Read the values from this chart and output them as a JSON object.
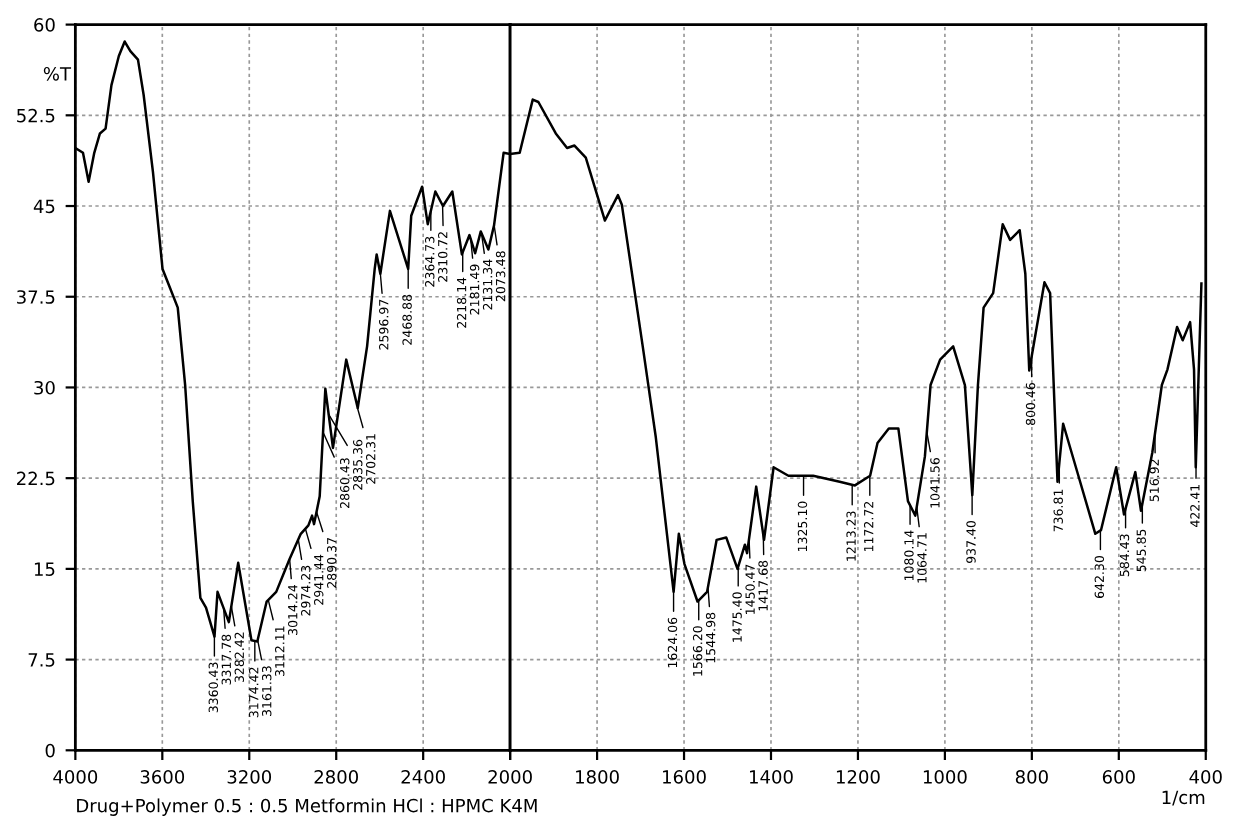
{
  "chart_data": [
    {
      "type": "line",
      "ylabel": "%T",
      "x": [
        4000,
        3965,
        3939,
        3913,
        3887,
        3861,
        3834,
        3800,
        3773,
        3747,
        3712,
        3686,
        3643,
        3599,
        3564,
        3529,
        3495,
        3460,
        3425,
        3399,
        3360,
        3346,
        3294,
        3251,
        3190,
        3163,
        3120,
        3076,
        3015,
        2963,
        2928,
        2911,
        2902,
        2876,
        2850,
        2815,
        2754,
        2701,
        2658,
        2623,
        2614,
        2597,
        2553,
        2469,
        2455,
        2405,
        2379,
        2344,
        2309,
        2266,
        2222,
        2187,
        2161,
        2135,
        2100,
        2074,
        2030,
        2000
      ],
      "series": [
        {
          "color": "#000000",
          "values": [
            49.8,
            49.4,
            47.0,
            49.4,
            51.0,
            51.4,
            55.0,
            57.4,
            58.6,
            57.8,
            57.1,
            54.2,
            47.8,
            39.8,
            38.2,
            36.6,
            30.2,
            20.6,
            12.6,
            11.8,
            9.4,
            13.1,
            10.6,
            15.5,
            9.1,
            9.0,
            12.3,
            13.1,
            15.8,
            17.9,
            18.6,
            19.4,
            18.7,
            21.0,
            29.9,
            25.0,
            32.3,
            28.3,
            33.4,
            39.8,
            41.0,
            39.4,
            44.6,
            39.8,
            44.2,
            46.6,
            43.5,
            46.2,
            45.0,
            46.2,
            41.0,
            42.6,
            41.1,
            42.9,
            41.4,
            43.4,
            49.4,
            49.3
          ]
        }
      ],
      "xlim": [
        4000,
        2000
      ],
      "xticks": [
        4000,
        3600,
        3200,
        2800,
        2400,
        2000
      ],
      "ylim": [
        0,
        60
      ],
      "yticks": [
        0,
        7.5,
        15,
        22.5,
        30,
        37.5,
        45,
        52.5,
        60
      ],
      "grid": true,
      "marker": "none",
      "line_style": "solid",
      "annotations": [
        "Drug+Polymer 0.5 : 0.5 Metformin HCl : HPMC K4M",
        {
          "text": "3360.43",
          "x": 3360.43,
          "y": 9.4
        },
        {
          "text": "3317.78",
          "x": 3317.78,
          "y": 11.7
        },
        {
          "text": "3282.42",
          "x": 3282.42,
          "y": 11.9
        },
        {
          "text": "3174.42",
          "x": 3174.42,
          "y": 9.0
        },
        {
          "text": "3161.33",
          "x": 3161.33,
          "y": 9.1
        },
        {
          "text": "3112.11",
          "x": 3112.11,
          "y": 12.4
        },
        {
          "text": "3014.24",
          "x": 3014.24,
          "y": 15.8
        },
        {
          "text": "2974.23",
          "x": 2974.23,
          "y": 17.4
        },
        {
          "text": "2941.44",
          "x": 2941.44,
          "y": 18.3
        },
        {
          "text": "2890.37",
          "x": 2890.37,
          "y": 19.7
        },
        {
          "text": "2860.43",
          "x": 2860.43,
          "y": 26.3
        },
        {
          "text": "2835.36",
          "x": 2835.36,
          "y": 27.8
        },
        {
          "text": "2702.31",
          "x": 2702.31,
          "y": 28.3
        },
        {
          "text": "2596.97",
          "x": 2596.97,
          "y": 39.4
        },
        {
          "text": "2468.88",
          "x": 2468.88,
          "y": 39.8
        },
        {
          "text": "2364.73",
          "x": 2364.73,
          "y": 44.6
        },
        {
          "text": "2310.72",
          "x": 2310.72,
          "y": 45.0
        },
        {
          "text": "2218.14",
          "x": 2218.14,
          "y": 41.2
        },
        {
          "text": "2181.49",
          "x": 2181.49,
          "y": 42.3
        },
        {
          "text": "2131.34",
          "x": 2131.34,
          "y": 42.7
        },
        {
          "text": "2073.48",
          "x": 2073.48,
          "y": 43.4
        }
      ]
    },
    {
      "type": "line",
      "xlabel": "1/cm",
      "x": [
        2000,
        1978,
        1948,
        1935,
        1895,
        1869,
        1852,
        1826,
        1782,
        1752,
        1743,
        1695,
        1665,
        1624,
        1612,
        1599,
        1569,
        1547,
        1525,
        1503,
        1477,
        1460,
        1455,
        1434,
        1416,
        1394,
        1360,
        1303,
        1242,
        1207,
        1172,
        1155,
        1129,
        1107,
        1085,
        1068,
        1046,
        1033,
        1011,
        981,
        954,
        937,
        924,
        911,
        889,
        867,
        850,
        828,
        815,
        806,
        771,
        758,
        741,
        728,
        693,
        654,
        641,
        606,
        588,
        562,
        549,
        523,
        501,
        488,
        466,
        453,
        436,
        427,
        423,
        410
      ],
      "series": [
        {
          "color": "#000000",
          "values": [
            49.3,
            49.4,
            53.8,
            53.6,
            51.0,
            49.8,
            50.0,
            49.0,
            43.8,
            45.9,
            45.1,
            33.4,
            25.9,
            13.1,
            17.9,
            15.4,
            12.3,
            13.1,
            17.4,
            17.6,
            15.0,
            17.0,
            16.3,
            21.8,
            17.4,
            23.4,
            22.7,
            22.7,
            22.2,
            21.9,
            22.7,
            25.4,
            26.6,
            26.6,
            20.6,
            19.4,
            24.3,
            30.2,
            32.3,
            33.4,
            30.2,
            21.1,
            30.2,
            36.6,
            37.8,
            43.5,
            42.2,
            43.0,
            39.4,
            31.4,
            38.7,
            37.8,
            22.2,
            27.0,
            22.7,
            17.9,
            18.2,
            23.4,
            19.5,
            23.0,
            19.8,
            24.6,
            30.2,
            31.5,
            35.0,
            33.9,
            35.4,
            31.5,
            23.4,
            38.6
          ]
        }
      ],
      "xlim": [
        2000,
        400
      ],
      "xticks": [
        {
          "value": 2000,
          "label": null
        },
        1800,
        1600,
        1400,
        1200,
        1000,
        800,
        600,
        400
      ],
      "ylim": [
        0,
        60
      ],
      "yticks": [
        0,
        7.5,
        15,
        22.5,
        30,
        37.5,
        45,
        52.5,
        60
      ],
      "tick_labels": "x",
      "grid": true,
      "marker": "none",
      "line_style": "solid",
      "annotations": [
        {
          "text": "1624.06",
          "x": 1624.06,
          "y": 13.1
        },
        {
          "text": "1566.20",
          "x": 1566.2,
          "y": 12.4
        },
        {
          "text": "1544.98",
          "x": 1544.98,
          "y": 13.5
        },
        {
          "text": "1475.40",
          "x": 1475.4,
          "y": 15.2
        },
        {
          "text": "1450.47",
          "x": 1450.47,
          "y": 17.5
        },
        {
          "text": "1417.68",
          "x": 1417.68,
          "y": 17.8
        },
        {
          "text": "1325.10",
          "x": 1325.1,
          "y": 22.7
        },
        {
          "text": "1213.23",
          "x": 1213.23,
          "y": 21.9
        },
        {
          "text": "1172.72",
          "x": 1172.72,
          "y": 22.7
        },
        {
          "text": "1080.14",
          "x": 1080.14,
          "y": 20.3
        },
        {
          "text": "1064.71",
          "x": 1064.71,
          "y": 20.1
        },
        {
          "text": "1041.56",
          "x": 1041.56,
          "y": 26.3
        },
        {
          "text": "937.40",
          "x": 937.4,
          "y": 21.1
        },
        {
          "text": "800.46",
          "x": 800.46,
          "y": 32.5
        },
        {
          "text": "736.81",
          "x": 736.81,
          "y": 23.7
        },
        {
          "text": "642.30",
          "x": 642.3,
          "y": 18.2
        },
        {
          "text": "584.43",
          "x": 584.43,
          "y": 20.0
        },
        {
          "text": "545.85",
          "x": 545.85,
          "y": 20.4
        },
        {
          "text": "516.92",
          "x": 516.92,
          "y": 26.2
        },
        {
          "text": "422.41",
          "x": 422.41,
          "y": 24.1
        }
      ]
    }
  ]
}
